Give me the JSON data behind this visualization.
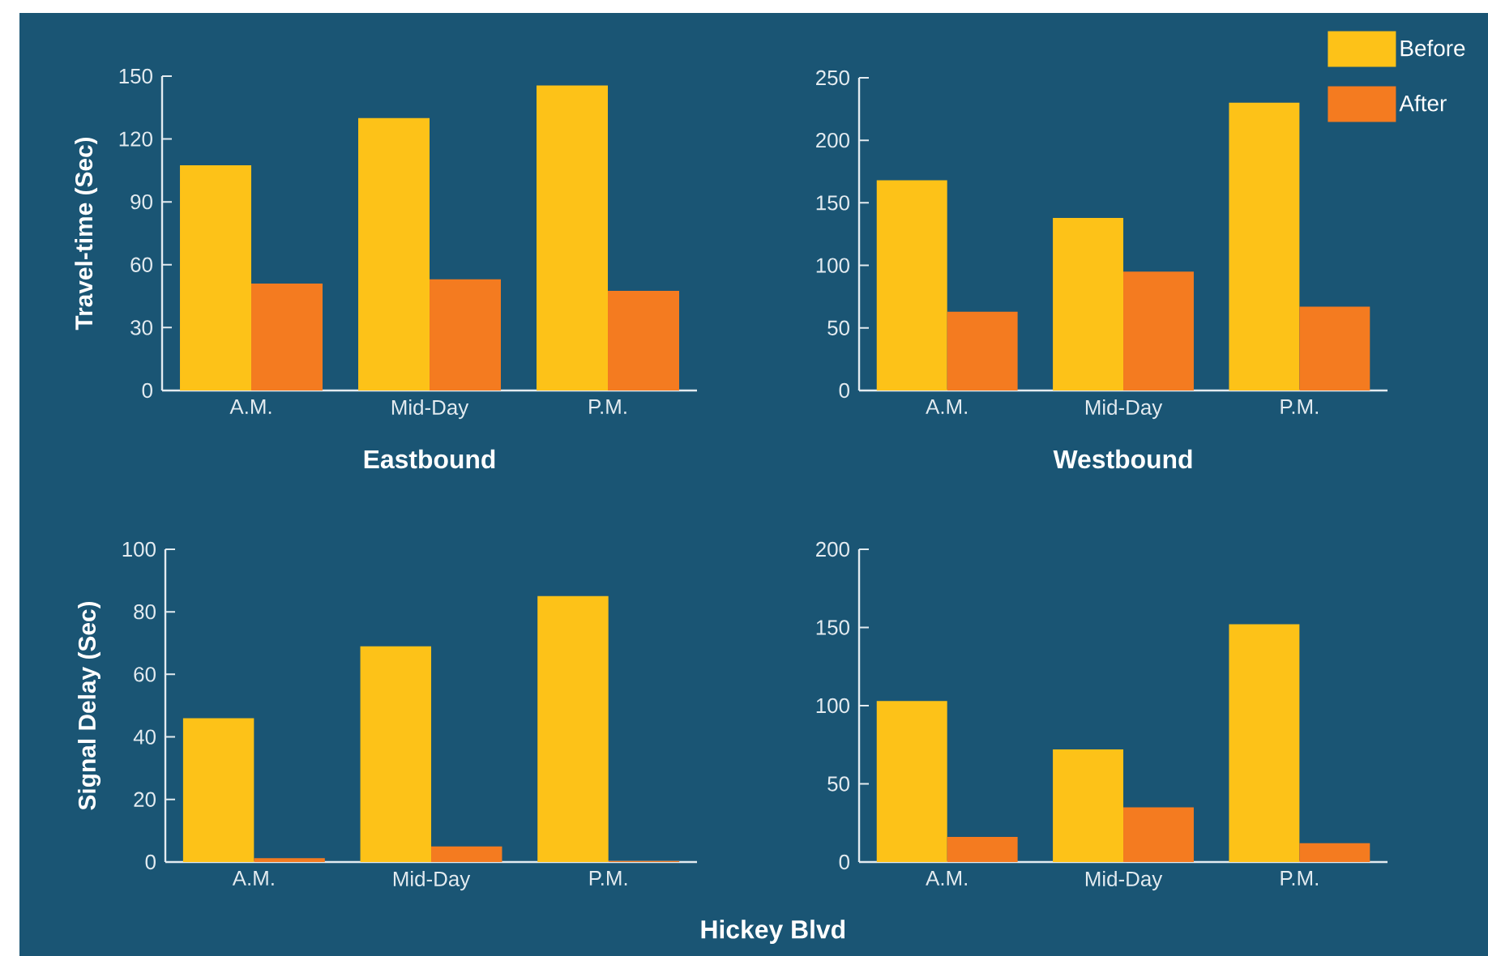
{
  "chart_data": [
    {
      "type": "bar",
      "categories": [
        "A.M.",
        "Mid-Day",
        "P.M."
      ],
      "ylabel": "Travel-time (Sec)",
      "xlabel": "Eastbound",
      "ylim": [
        0,
        150
      ],
      "yticks": [
        0,
        30,
        60,
        90,
        120,
        150
      ],
      "series": [
        {
          "color": "#fdc218",
          "values": [
            107.5,
            130,
            145.5
          ]
        },
        {
          "color": "#f47b20",
          "values": [
            51,
            53,
            47.5
          ]
        }
      ]
    },
    {
      "type": "bar",
      "categories": [
        "A.M.",
        "Mid-Day",
        "P.M."
      ],
      "xlabel": "Westbound",
      "ylim": [
        0,
        250
      ],
      "yticks": [
        0,
        50,
        100,
        150,
        200,
        250
      ],
      "legend": "top right",
      "series": [
        {
          "name": "Before",
          "color": "#fdc218",
          "values": [
            168,
            138,
            230
          ]
        },
        {
          "name": "After",
          "color": "#f47b20",
          "values": [
            63,
            95,
            67
          ]
        }
      ]
    },
    {
      "type": "bar",
      "categories": [
        "A.M.",
        "Mid-Day",
        "P.M."
      ],
      "ylabel": "Signal Delay (Sec)",
      "ylim": [
        0,
        100
      ],
      "yticks": [
        0,
        20,
        40,
        60,
        80,
        100
      ],
      "annotations": [
        "Hickey Blvd"
      ],
      "series": [
        {
          "color": "#fdc218",
          "values": [
            46,
            69,
            85
          ]
        },
        {
          "color": "#f47b20",
          "values": [
            1.2,
            5,
            0.3
          ]
        }
      ]
    },
    {
      "type": "bar",
      "categories": [
        "A.M.",
        "Mid-Day",
        "P.M."
      ],
      "ylim": [
        0,
        200
      ],
      "yticks": [
        0,
        50,
        100,
        150,
        200
      ],
      "series": [
        {
          "color": "#fdc218",
          "values": [
            103,
            72,
            152
          ]
        },
        {
          "color": "#f47b20",
          "values": [
            16,
            35,
            12
          ]
        }
      ]
    }
  ]
}
